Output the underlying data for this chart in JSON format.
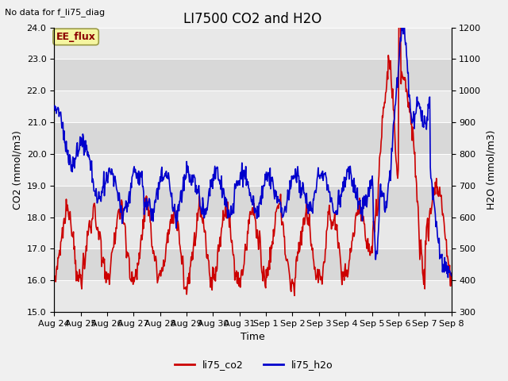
{
  "title": "LI7500 CO2 and H2O",
  "top_left_text": "No data for f_li75_diag",
  "legend_box_text": "EE_flux",
  "xlabel": "Time",
  "ylabel_left": "CO2 (mmol/m3)",
  "ylabel_right": "H2O (mmol/m3)",
  "ylim_left": [
    15.0,
    24.0
  ],
  "ylim_right": [
    300,
    1200
  ],
  "yticks_left": [
    15.0,
    16.0,
    17.0,
    18.0,
    19.0,
    20.0,
    21.0,
    22.0,
    23.0,
    24.0
  ],
  "yticks_right": [
    300,
    400,
    500,
    600,
    700,
    800,
    900,
    1000,
    1100,
    1200
  ],
  "xtick_labels": [
    "Aug 24",
    "Aug 25",
    "Aug 26",
    "Aug 27",
    "Aug 28",
    "Aug 29",
    "Aug 30",
    "Aug 31",
    "Sep 1",
    "Sep 2",
    "Sep 3",
    "Sep 4",
    "Sep 5",
    "Sep 6",
    "Sep 7",
    "Sep 8"
  ],
  "co2_color": "#cc0000",
  "h2o_color": "#0000cc",
  "line_width": 1.2,
  "background_color": "#f0f0f0",
  "band_dark": "#d8d8d8",
  "band_light": "#e8e8e8",
  "grid_color": "#c8c8c8",
  "title_fontsize": 12,
  "label_fontsize": 9,
  "tick_fontsize": 8
}
